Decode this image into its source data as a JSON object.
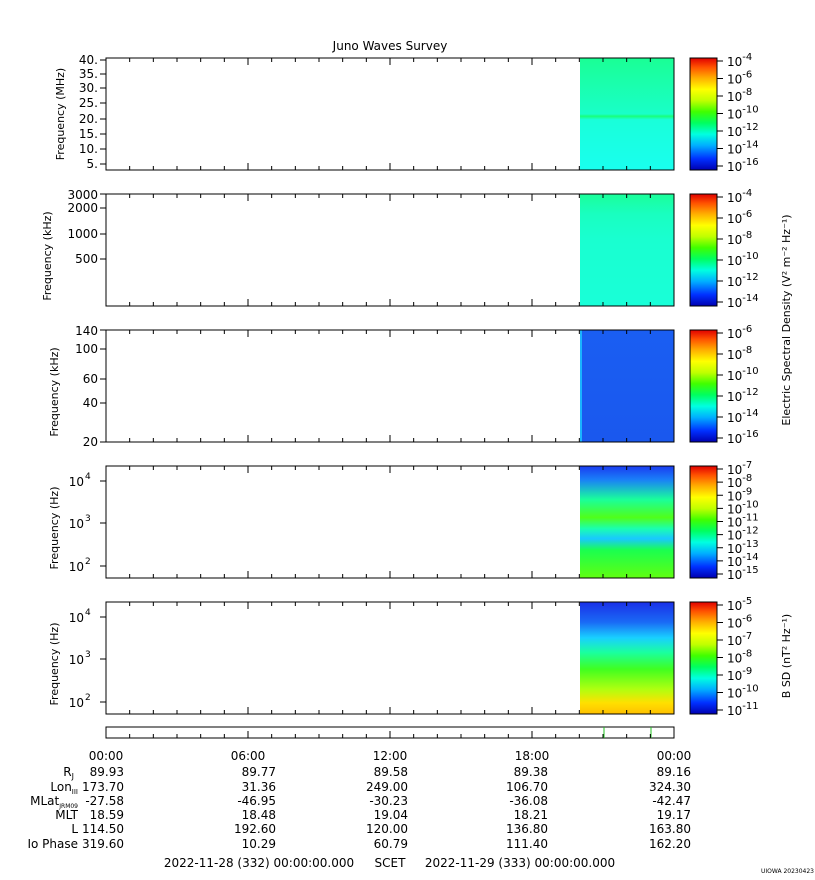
{
  "title": "Juno Waves Survey",
  "panels": [
    {
      "ylabel": "Frequency (MHz)",
      "ytick_labels": [
        "40.",
        "35.",
        "30.",
        "25.",
        "20.",
        "15.",
        "10.",
        "5."
      ],
      "colorbar_labels": [
        "-4",
        "-6",
        "-8",
        "-10",
        "-12",
        "-14",
        "-16"
      ],
      "colorbar_base": "10"
    },
    {
      "ylabel": "Frequency (kHz)",
      "ytick_labels": [
        "3000",
        "2000",
        "1000",
        "500"
      ],
      "colorbar_labels": [
        "-4",
        "-6",
        "-8",
        "-10",
        "-12",
        "-14"
      ],
      "colorbar_base": "10"
    },
    {
      "ylabel": "Frequency (kHz)",
      "ytick_labels": [
        "140",
        "100",
        "60",
        "40",
        "20"
      ],
      "colorbar_labels": [
        "-6",
        "-8",
        "-10",
        "-12",
        "-14",
        "-16"
      ],
      "colorbar_base": "10"
    },
    {
      "ylabel": "Frequency (Hz)",
      "ytick_labels": [
        "4",
        "3",
        "2"
      ],
      "ytick_base": "10",
      "colorbar_labels": [
        "-7",
        "-8",
        "-9",
        "-10",
        "-11",
        "-12",
        "-13",
        "-14",
        "-15"
      ],
      "colorbar_base": "10"
    },
    {
      "ylabel": "Frequency (Hz)",
      "ytick_labels": [
        "4",
        "3",
        "2"
      ],
      "ytick_base": "10",
      "colorbar_labels": [
        "-5",
        "-6",
        "-7",
        "-8",
        "-9",
        "-10",
        "-11"
      ],
      "colorbar_base": "10"
    }
  ],
  "colorbar_titles": {
    "electric": "Electric Spectral Density (V² m⁻² Hz⁻¹)",
    "magnetic": "B SD (nT² Hz⁻¹)"
  },
  "time_ticks": [
    "00:00",
    "06:00",
    "12:00",
    "18:00",
    "00:00"
  ],
  "ephemeris": {
    "labels": [
      "R",
      "Lon",
      "MLat",
      "MLT",
      "L",
      "Io Phase"
    ],
    "label_subscripts": [
      "J",
      "III",
      "JRM09",
      "",
      "",
      ""
    ],
    "rows": [
      [
        "89.93",
        "89.77",
        "89.58",
        "89.38",
        "89.16"
      ],
      [
        "173.70",
        "31.36",
        "249.00",
        "106.70",
        "324.30"
      ],
      [
        "-27.58",
        "-46.95",
        "-30.23",
        "-36.08",
        "-42.47"
      ],
      [
        "18.59",
        "18.48",
        "19.04",
        "18.21",
        "19.17"
      ],
      [
        "114.50",
        "192.60",
        "120.00",
        "136.80",
        "163.80"
      ],
      [
        "319.60",
        "10.29",
        "60.79",
        "111.40",
        "162.20"
      ]
    ]
  },
  "footer": {
    "start": "2022-11-28 (332) 00:00:00.000",
    "axis": "SCET",
    "end": "2022-11-29 (333) 00:00:00.000"
  },
  "credit": "UIOWA 20230423",
  "colors": {
    "e_high": "#1aff8c",
    "e_low": "#19ffe9",
    "lfr_blue": "#1a5cf0",
    "colormap": [
      "#0000b0",
      "#0030ff",
      "#00b0ff",
      "#00ffe0",
      "#00ff60",
      "#40ff00",
      "#c0ff00",
      "#ffff00",
      "#ffb000",
      "#ff5000",
      "#e00000"
    ]
  },
  "chart_data": {
    "type": "heatmap",
    "title": "Juno Waves Survey",
    "x_range": [
      "2022-11-28 00:00",
      "2022-11-29 00:00"
    ],
    "data_start": "2022-11-28 20:00",
    "panels": [
      {
        "ylabel": "Frequency (MHz)",
        "ylim": [
          3.5,
          41
        ],
        "yscale": "linear",
        "color_range_exp": [
          -16.5,
          -3.5
        ]
      },
      {
        "ylabel": "Frequency (kHz)",
        "ylim": [
          140,
          3000
        ],
        "yscale": "log",
        "color_range_exp": [
          -15,
          -3.5
        ]
      },
      {
        "ylabel": "Frequency (kHz)",
        "ylim": [
          20,
          140
        ],
        "yscale": "log",
        "color_range_exp": [
          -16,
          -6
        ]
      },
      {
        "ylabel": "Frequency (Hz)",
        "ylim": [
          50,
          20000
        ],
        "yscale": "log",
        "color_range_exp": [
          -15,
          -7
        ]
      },
      {
        "ylabel": "Frequency (Hz)",
        "ylim": [
          50,
          20000
        ],
        "yscale": "log",
        "color_range_exp": [
          -11,
          -4.5
        ]
      }
    ],
    "marker_times": [
      "2022-11-28 21:20",
      "2022-11-28 23:10"
    ]
  }
}
